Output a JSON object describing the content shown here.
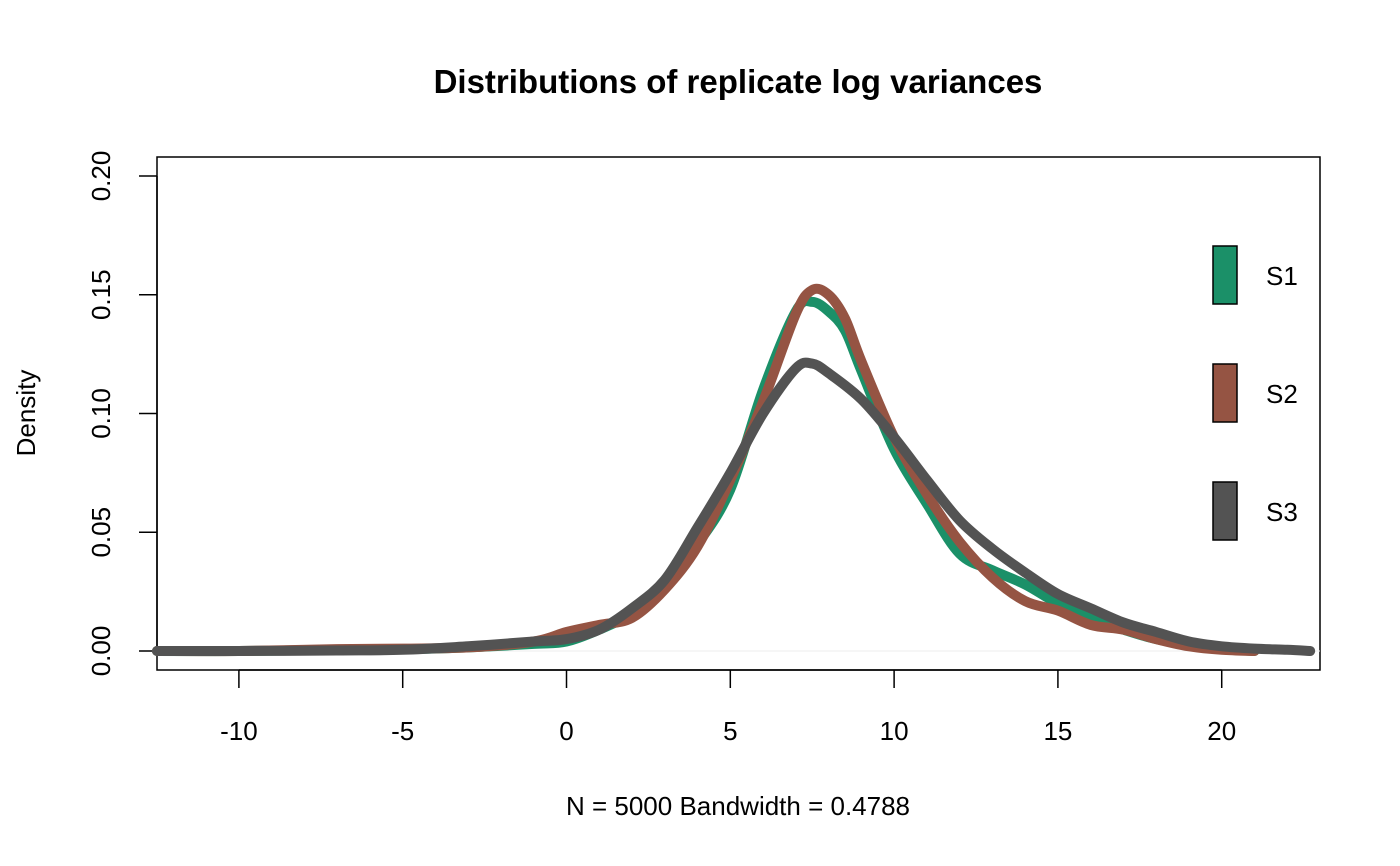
{
  "chart_data": {
    "type": "line",
    "title": "Distributions of replicate log variances",
    "xlabel": "N = 5000   Bandwidth = 0.4788",
    "ylabel": "Density",
    "xlim": [
      -12.5,
      23
    ],
    "ylim": [
      -0.008,
      0.208
    ],
    "x_ticks": [
      -10,
      -5,
      0,
      5,
      10,
      15,
      20
    ],
    "y_ticks": [
      0.0,
      0.05,
      0.1,
      0.15,
      0.2
    ],
    "x_tick_labels": [
      "-10",
      "-5",
      "0",
      "5",
      "10",
      "15",
      "20"
    ],
    "y_tick_labels": [
      "0.00",
      "0.05",
      "0.10",
      "0.15",
      "0.20"
    ],
    "grid": false,
    "legend_position": "right",
    "series": [
      {
        "name": "S1",
        "color": "#1b9068",
        "points": [
          [
            -12.5,
            0.0
          ],
          [
            -10,
            0.0
          ],
          [
            -7,
            0.0005
          ],
          [
            -5,
            0.0007
          ],
          [
            -3,
            0.0015
          ],
          [
            -1,
            0.003
          ],
          [
            0,
            0.004
          ],
          [
            1,
            0.009
          ],
          [
            2,
            0.016
          ],
          [
            3,
            0.028
          ],
          [
            4,
            0.045
          ],
          [
            5,
            0.068
          ],
          [
            6,
            0.11
          ],
          [
            7,
            0.143
          ],
          [
            7.5,
            0.147
          ],
          [
            8,
            0.143
          ],
          [
            8.5,
            0.135
          ],
          [
            9,
            0.118
          ],
          [
            10,
            0.085
          ],
          [
            11,
            0.062
          ],
          [
            12,
            0.041
          ],
          [
            13,
            0.034
          ],
          [
            14,
            0.028
          ],
          [
            15,
            0.02
          ],
          [
            16,
            0.014
          ],
          [
            17,
            0.009
          ],
          [
            18,
            0.005
          ],
          [
            19,
            0.003
          ],
          [
            20,
            0.001
          ],
          [
            21,
            0.0
          ]
        ]
      },
      {
        "name": "S2",
        "color": "#955443",
        "points": [
          [
            -12.5,
            0.0
          ],
          [
            -10,
            0.0
          ],
          [
            -7,
            0.0008
          ],
          [
            -5,
            0.001
          ],
          [
            -3,
            0.0015
          ],
          [
            -1,
            0.004
          ],
          [
            0,
            0.008
          ],
          [
            1,
            0.011
          ],
          [
            2,
            0.014
          ],
          [
            3,
            0.026
          ],
          [
            4,
            0.044
          ],
          [
            5,
            0.072
          ],
          [
            6,
            0.105
          ],
          [
            7,
            0.142
          ],
          [
            7.5,
            0.152
          ],
          [
            8,
            0.15
          ],
          [
            8.5,
            0.14
          ],
          [
            9,
            0.122
          ],
          [
            10,
            0.09
          ],
          [
            11,
            0.066
          ],
          [
            12,
            0.046
          ],
          [
            13,
            0.031
          ],
          [
            14,
            0.021
          ],
          [
            15,
            0.017
          ],
          [
            16,
            0.011
          ],
          [
            17,
            0.009
          ],
          [
            18,
            0.005
          ],
          [
            19,
            0.002
          ],
          [
            20,
            0.0005
          ],
          [
            21,
            0.0
          ]
        ]
      },
      {
        "name": "S3",
        "color": "#535353",
        "points": [
          [
            -12.5,
            0.0
          ],
          [
            -10,
            0.0
          ],
          [
            -7,
            0.0002
          ],
          [
            -5,
            0.0005
          ],
          [
            -3,
            0.002
          ],
          [
            -1,
            0.004
          ],
          [
            0,
            0.005
          ],
          [
            1,
            0.009
          ],
          [
            2,
            0.018
          ],
          [
            3,
            0.03
          ],
          [
            4,
            0.052
          ],
          [
            5,
            0.075
          ],
          [
            6,
            0.1
          ],
          [
            7,
            0.119
          ],
          [
            7.5,
            0.121
          ],
          [
            8,
            0.117
          ],
          [
            9,
            0.106
          ],
          [
            10,
            0.09
          ],
          [
            11,
            0.072
          ],
          [
            12,
            0.055
          ],
          [
            13,
            0.043
          ],
          [
            14,
            0.033
          ],
          [
            15,
            0.024
          ],
          [
            16,
            0.018
          ],
          [
            17,
            0.012
          ],
          [
            18,
            0.008
          ],
          [
            19,
            0.004
          ],
          [
            20,
            0.002
          ],
          [
            21,
            0.001
          ],
          [
            22,
            0.0005
          ],
          [
            22.7,
            0.0
          ]
        ]
      }
    ]
  }
}
